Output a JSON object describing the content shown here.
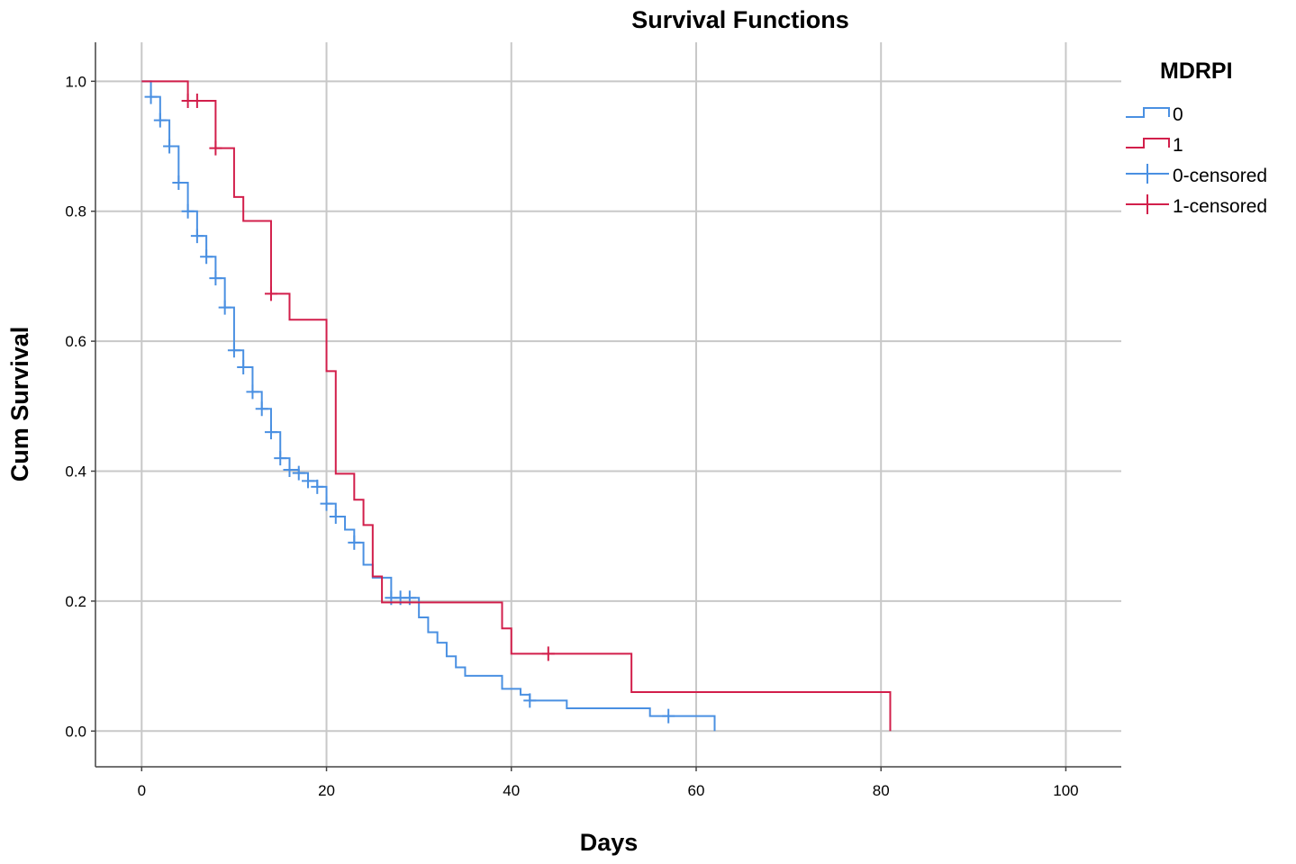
{
  "chart_data": {
    "type": "line",
    "title": "Survival Functions",
    "xlabel": "Days",
    "ylabel": "Cum Survival",
    "xlim": [
      -5,
      106
    ],
    "ylim": [
      -0.055,
      1.06
    ],
    "x_ticks": [
      0,
      20,
      40,
      60,
      80,
      100
    ],
    "y_ticks": [
      0.0,
      0.2,
      0.4,
      0.6,
      0.8,
      1.0
    ],
    "x_tick_labels": [
      "0",
      "20",
      "40",
      "60",
      "80",
      "100"
    ],
    "y_tick_labels": [
      "0.0",
      "0.2",
      "0.4",
      "0.6",
      "0.8",
      "1.0"
    ],
    "grid": true,
    "legend": {
      "title": "MDRPI",
      "placement": "right",
      "entries": [
        "0",
        "1",
        "0-censored",
        "1-censored"
      ]
    },
    "colors": {
      "0": "#4a90e2",
      "1": "#d21f4b"
    },
    "series": [
      {
        "name": "0",
        "step": [
          [
            0,
            1.0
          ],
          [
            1,
            0.976
          ],
          [
            2,
            0.94
          ],
          [
            3,
            0.9
          ],
          [
            4,
            0.844
          ],
          [
            5,
            0.8
          ],
          [
            6,
            0.762
          ],
          [
            7,
            0.73
          ],
          [
            8,
            0.697
          ],
          [
            9,
            0.652
          ],
          [
            10,
            0.586
          ],
          [
            11,
            0.56
          ],
          [
            12,
            0.522
          ],
          [
            13,
            0.496
          ],
          [
            14,
            0.46
          ],
          [
            15,
            0.42
          ],
          [
            16,
            0.402
          ],
          [
            17,
            0.397
          ],
          [
            18,
            0.385
          ],
          [
            19,
            0.376
          ],
          [
            20,
            0.35
          ],
          [
            21,
            0.33
          ],
          [
            22,
            0.31
          ],
          [
            23,
            0.29
          ],
          [
            24,
            0.256
          ],
          [
            25,
            0.236
          ],
          [
            27,
            0.205
          ],
          [
            30,
            0.175
          ],
          [
            31,
            0.152
          ],
          [
            32,
            0.136
          ],
          [
            33,
            0.115
          ],
          [
            34,
            0.098
          ],
          [
            35,
            0.085
          ],
          [
            39,
            0.065
          ],
          [
            41,
            0.056
          ],
          [
            42,
            0.047
          ],
          [
            46,
            0.035
          ],
          [
            55,
            0.023
          ],
          [
            62,
            0.0
          ]
        ],
        "end_x": 62,
        "censored": [
          [
            1,
            0.976
          ],
          [
            2,
            0.94
          ],
          [
            3,
            0.9
          ],
          [
            4,
            0.844
          ],
          [
            5,
            0.8
          ],
          [
            6,
            0.762
          ],
          [
            7,
            0.73
          ],
          [
            8,
            0.697
          ],
          [
            9,
            0.652
          ],
          [
            10,
            0.586
          ],
          [
            11,
            0.56
          ],
          [
            12,
            0.522
          ],
          [
            13,
            0.496
          ],
          [
            14,
            0.46
          ],
          [
            15,
            0.42
          ],
          [
            16,
            0.402
          ],
          [
            17,
            0.397
          ],
          [
            18,
            0.385
          ],
          [
            19,
            0.376
          ],
          [
            20,
            0.35
          ],
          [
            21,
            0.33
          ],
          [
            23,
            0.29
          ],
          [
            27,
            0.205
          ],
          [
            28,
            0.205
          ],
          [
            29,
            0.205
          ],
          [
            42,
            0.047
          ],
          [
            57,
            0.023
          ]
        ]
      },
      {
        "name": "1",
        "step": [
          [
            0,
            1.0
          ],
          [
            5,
            0.97
          ],
          [
            8,
            0.897
          ],
          [
            10,
            0.822
          ],
          [
            11,
            0.785
          ],
          [
            14,
            0.673
          ],
          [
            16,
            0.633
          ],
          [
            20,
            0.554
          ],
          [
            21,
            0.396
          ],
          [
            23,
            0.356
          ],
          [
            24,
            0.317
          ],
          [
            25,
            0.238
          ],
          [
            26,
            0.198
          ],
          [
            39,
            0.158
          ],
          [
            40,
            0.119
          ],
          [
            53,
            0.06
          ],
          [
            81,
            0.0
          ]
        ],
        "end_x": 81,
        "censored": [
          [
            5,
            0.97
          ],
          [
            6,
            0.97
          ],
          [
            8,
            0.897
          ],
          [
            14,
            0.673
          ],
          [
            44,
            0.119
          ]
        ]
      }
    ]
  }
}
